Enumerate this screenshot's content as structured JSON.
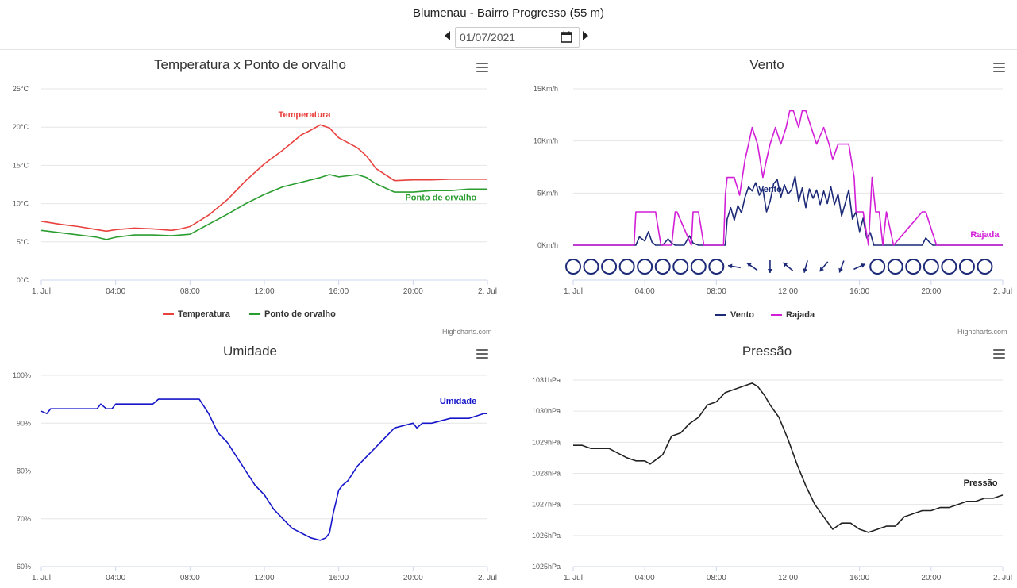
{
  "header": {
    "title": "Blumenau - Bairro Progresso (55 m)",
    "date_value": "01/07/2021"
  },
  "credits": "Highcharts.com",
  "chart_data": [
    {
      "id": "temp",
      "type": "line",
      "title": "Temperatura x Ponto de orvalho",
      "x_ticks": [
        "1. Jul",
        "04:00",
        "08:00",
        "12:00",
        "16:00",
        "20:00",
        "2. Jul"
      ],
      "y_ticks": [
        "0°C",
        "5°C",
        "10°C",
        "15°C",
        "20°C",
        "25°C"
      ],
      "ylim": [
        0,
        25
      ],
      "xlim": [
        0,
        24
      ],
      "grid": true,
      "legend": "bottom",
      "series": [
        {
          "name": "Temperatura",
          "color": "#e8413e",
          "x": [
            0,
            1,
            2,
            3,
            3.5,
            4,
            5,
            6,
            7,
            7.5,
            8,
            9,
            10,
            11,
            12,
            13,
            14,
            14.5,
            15,
            15.5,
            16,
            17,
            17.5,
            18,
            19,
            20,
            21,
            22,
            23,
            24
          ],
          "y": [
            7.7,
            7.3,
            7.0,
            6.6,
            6.4,
            6.6,
            6.8,
            6.7,
            6.5,
            6.7,
            7.0,
            8.5,
            10.5,
            13.0,
            15.2,
            17.0,
            19.0,
            19.6,
            20.3,
            19.9,
            18.6,
            17.3,
            16.2,
            14.6,
            13.0,
            13.1,
            13.1,
            13.2,
            13.2,
            13.2
          ]
        },
        {
          "name": "Ponto de orvalho",
          "color": "#2a9d2f",
          "x": [
            0,
            1,
            2,
            3,
            3.5,
            4,
            5,
            6,
            7,
            8,
            9,
            10,
            11,
            12,
            13,
            14,
            15,
            15.5,
            16,
            17,
            17.5,
            18,
            19,
            20,
            21,
            22,
            23,
            24
          ],
          "y": [
            6.5,
            6.2,
            5.9,
            5.6,
            5.3,
            5.6,
            5.9,
            5.9,
            5.8,
            6.0,
            7.3,
            8.6,
            10.0,
            11.2,
            12.2,
            12.8,
            13.4,
            13.8,
            13.5,
            13.8,
            13.4,
            12.6,
            11.5,
            11.5,
            11.7,
            11.7,
            11.9,
            11.9
          ]
        }
      ]
    },
    {
      "id": "wind",
      "type": "line",
      "title": "Vento",
      "x_ticks": [
        "1. Jul",
        "04:00",
        "08:00",
        "12:00",
        "16:00",
        "20:00",
        "2. Jul"
      ],
      "y_ticks": [
        "0Km/h",
        "5Km/h",
        "10Km/h",
        "15Km/h"
      ],
      "ylim": [
        0,
        15
      ],
      "xlim": [
        0,
        24
      ],
      "grid": true,
      "legend": "bottom",
      "series": [
        {
          "name": "Vento",
          "color": "#1c2a78",
          "x": [
            0,
            3.5,
            3.7,
            4.0,
            4.2,
            4.4,
            4.6,
            5.0,
            5.3,
            5.5,
            5.7,
            6.2,
            6.5,
            6.7,
            7.0,
            8.5,
            8.6,
            8.8,
            9.0,
            9.2,
            9.4,
            9.6,
            9.8,
            10.0,
            10.2,
            10.4,
            10.6,
            10.8,
            11.0,
            11.2,
            11.4,
            11.6,
            11.8,
            12.0,
            12.2,
            12.4,
            12.6,
            12.8,
            13.0,
            13.2,
            13.4,
            13.6,
            13.8,
            14.0,
            14.2,
            14.4,
            14.6,
            14.8,
            15.0,
            15.2,
            15.4,
            15.6,
            15.8,
            16.0,
            16.2,
            16.4,
            16.6,
            16.8,
            17.0,
            19.5,
            19.7,
            19.9,
            20.1,
            24
          ],
          "y": [
            0,
            0,
            0.8,
            0.4,
            1.3,
            0.3,
            0,
            0,
            0.6,
            0.2,
            0,
            0,
            0.9,
            0.2,
            0,
            0,
            2.5,
            3.6,
            2.4,
            3.8,
            3.1,
            4.6,
            5.6,
            5.2,
            6.0,
            4.8,
            5.4,
            3.2,
            4.2,
            5.9,
            6.3,
            4.6,
            5.8,
            4.9,
            5.3,
            6.6,
            4.2,
            5.5,
            3.6,
            5.4,
            4.5,
            5.3,
            3.9,
            5.2,
            4.0,
            5.6,
            3.9,
            4.9,
            2.8,
            4.0,
            5.3,
            2.5,
            3.2,
            1.3,
            2.6,
            0.7,
            1.2,
            0,
            0,
            0,
            0.7,
            0.3,
            0,
            0
          ]
        },
        {
          "name": "Rajada",
          "color": "#d21fd7",
          "x": [
            0,
            3.4,
            3.5,
            4.0,
            4.3,
            4.6,
            4.9,
            5.2,
            5.5,
            5.7,
            5.8,
            6.6,
            6.7,
            7.0,
            7.3,
            8.4,
            8.5,
            8.6,
            9.0,
            9.3,
            9.6,
            9.8,
            10.0,
            10.3,
            10.6,
            10.8,
            11.0,
            11.3,
            11.6,
            11.9,
            12.1,
            12.3,
            12.6,
            12.8,
            13.0,
            13.3,
            13.6,
            14.0,
            14.3,
            14.5,
            14.8,
            15.0,
            15.4,
            15.7,
            15.8,
            16.2,
            16.5,
            16.7,
            16.9,
            17.1,
            17.3,
            17.5,
            17.7,
            17.9,
            19.5,
            19.7,
            20.0,
            20.3,
            20.5,
            24
          ],
          "y": [
            0,
            0,
            3.2,
            3.2,
            3.2,
            3.2,
            0,
            0,
            0,
            3.2,
            3.2,
            0,
            3.2,
            3.2,
            0,
            0,
            4.8,
            6.5,
            6.5,
            4.8,
            8.2,
            9.7,
            11.3,
            9.7,
            6.5,
            8.2,
            9.7,
            11.3,
            9.7,
            11.3,
            12.9,
            12.9,
            11.3,
            12.9,
            12.9,
            11.3,
            9.7,
            11.3,
            9.7,
            8.2,
            9.7,
            9.7,
            9.7,
            6.5,
            3.2,
            3.2,
            0,
            6.5,
            3.2,
            3.2,
            0,
            3.2,
            1.6,
            0,
            3.2,
            3.2,
            1.6,
            0,
            0,
            0
          ]
        }
      ],
      "direction_arrows": [
        {
          "hour": 0,
          "type": "calm"
        },
        {
          "hour": 1,
          "type": "calm"
        },
        {
          "hour": 2,
          "type": "calm"
        },
        {
          "hour": 3,
          "type": "calm"
        },
        {
          "hour": 4,
          "type": "calm"
        },
        {
          "hour": 5,
          "type": "calm"
        },
        {
          "hour": 6,
          "type": "calm"
        },
        {
          "hour": 7,
          "type": "calm"
        },
        {
          "hour": 8,
          "type": "calm"
        },
        {
          "hour": 9,
          "type": "arrow",
          "angle_deg": 190
        },
        {
          "hour": 10,
          "type": "arrow",
          "angle_deg": 215
        },
        {
          "hour": 11,
          "type": "arrow",
          "angle_deg": 90
        },
        {
          "hour": 12,
          "type": "arrow",
          "angle_deg": 220
        },
        {
          "hour": 13,
          "type": "arrow",
          "angle_deg": 105
        },
        {
          "hour": 14,
          "type": "arrow",
          "angle_deg": 130
        },
        {
          "hour": 15,
          "type": "arrow",
          "angle_deg": 110
        },
        {
          "hour": 16,
          "type": "arrow",
          "angle_deg": 335
        },
        {
          "hour": 17,
          "type": "calm"
        },
        {
          "hour": 18,
          "type": "calm"
        },
        {
          "hour": 19,
          "type": "calm"
        },
        {
          "hour": 20,
          "type": "calm"
        },
        {
          "hour": 21,
          "type": "calm"
        },
        {
          "hour": 22,
          "type": "calm"
        },
        {
          "hour": 23,
          "type": "calm"
        }
      ]
    },
    {
      "id": "humidity",
      "type": "line",
      "title": "Umidade",
      "x_ticks": [
        "1. Jul",
        "04:00",
        "08:00",
        "12:00",
        "16:00",
        "20:00",
        "2. Jul"
      ],
      "y_ticks": [
        "60%",
        "70%",
        "80%",
        "90%",
        "100%"
      ],
      "ylim": [
        60,
        100
      ],
      "xlim": [
        0,
        24
      ],
      "grid": true,
      "legend": "none",
      "series": [
        {
          "name": "Umidade",
          "color": "#1515c9",
          "x": [
            0,
            0.3,
            0.5,
            1,
            2,
            3,
            3.2,
            3.5,
            3.8,
            4,
            5,
            6,
            6.3,
            7,
            8,
            8.5,
            9,
            9.5,
            10,
            10.5,
            11,
            11.5,
            12,
            12.5,
            13,
            13.5,
            14,
            14.5,
            15,
            15.3,
            15.5,
            15.7,
            16,
            16.2,
            16.5,
            17,
            17.5,
            18,
            18.5,
            19,
            20,
            20.2,
            20.5,
            21,
            22,
            23,
            23.8,
            24
          ],
          "y": [
            92.5,
            92,
            93,
            93,
            93,
            93,
            94,
            93,
            93,
            94,
            94,
            94,
            95,
            95,
            95,
            95,
            92,
            88,
            86,
            83,
            80,
            77,
            75,
            72,
            70,
            68,
            67,
            66,
            65.5,
            66,
            67,
            71,
            76,
            77,
            78,
            81,
            83,
            85,
            87,
            89,
            90,
            89,
            90,
            90,
            91,
            91,
            92,
            92
          ]
        }
      ]
    },
    {
      "id": "pressure",
      "type": "line",
      "title": "Pressão",
      "x_ticks": [
        "1. Jul",
        "04:00",
        "08:00",
        "12:00",
        "16:00",
        "20:00",
        "2. Jul"
      ],
      "y_ticks": [
        "1025hPa",
        "1026hPa",
        "1027hPa",
        "1028hPa",
        "1029hPa",
        "1030hPa",
        "1031hPa"
      ],
      "ylim": [
        1025,
        1031
      ],
      "xlim": [
        0,
        24
      ],
      "grid": true,
      "legend": "none",
      "series": [
        {
          "name": "Pressão",
          "color": "#222222",
          "x": [
            0,
            0.5,
            1,
            2,
            3,
            3.5,
            4,
            4.3,
            5,
            5.5,
            6,
            6.5,
            7,
            7.5,
            8,
            8.5,
            9,
            9.5,
            10,
            10.3,
            10.7,
            11,
            11.5,
            12,
            12.5,
            13,
            13.5,
            14,
            14.5,
            15,
            15.5,
            16,
            16.5,
            17,
            17.5,
            18,
            18.5,
            19,
            19.5,
            20,
            20.5,
            21,
            21.5,
            22,
            22.5,
            23,
            23.5,
            24
          ],
          "y": [
            1028.9,
            1028.9,
            1028.8,
            1028.8,
            1028.5,
            1028.4,
            1028.4,
            1028.3,
            1028.6,
            1029.2,
            1029.3,
            1029.6,
            1029.8,
            1030.2,
            1030.3,
            1030.6,
            1030.7,
            1030.8,
            1030.9,
            1030.8,
            1030.5,
            1030.2,
            1029.8,
            1029.1,
            1028.3,
            1027.6,
            1027.0,
            1026.6,
            1026.2,
            1026.4,
            1026.4,
            1026.2,
            1026.1,
            1026.2,
            1026.3,
            1026.3,
            1026.6,
            1026.7,
            1026.8,
            1026.8,
            1026.9,
            1026.9,
            1027.0,
            1027.1,
            1027.1,
            1027.2,
            1027.2,
            1027.3
          ]
        }
      ]
    }
  ]
}
